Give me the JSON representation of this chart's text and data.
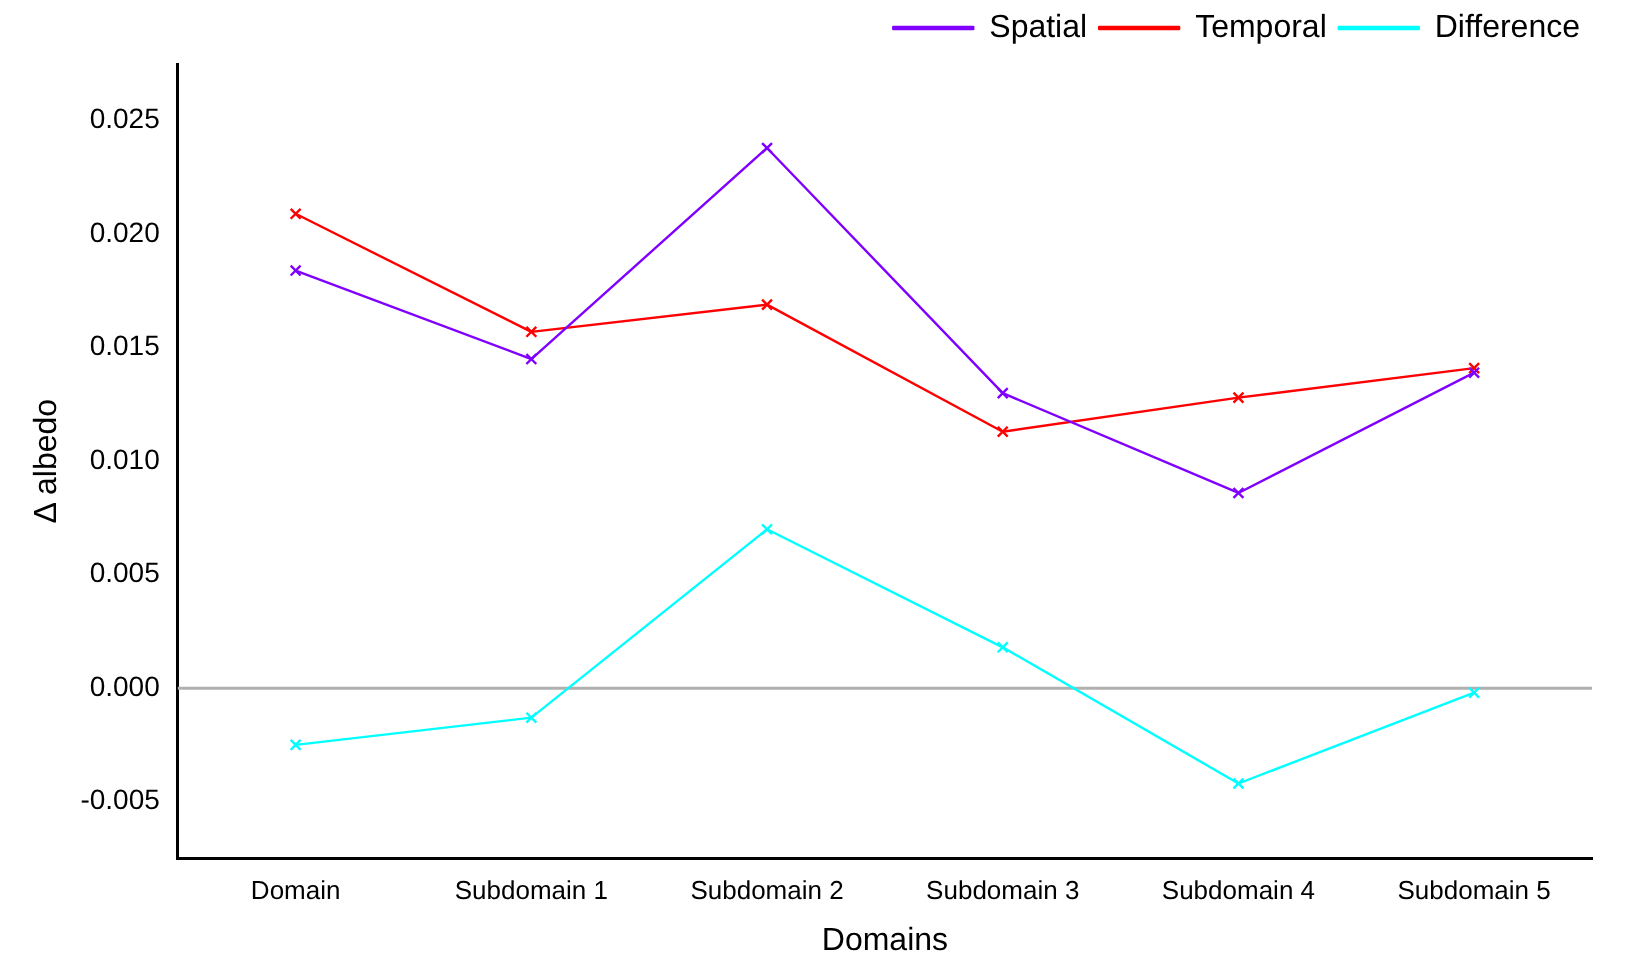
{
  "chart_data": {
    "type": "line",
    "xlabel": "Domains",
    "ylabel": "Δ albedo",
    "categories": [
      "Domain",
      "Subdomain 1",
      "Subdomain 2",
      "Subdomain 3",
      "Subdomain 4",
      "Subdomain 5"
    ],
    "series": [
      {
        "name": "Spatial",
        "color": "#8000ff",
        "values": [
          0.0184,
          0.0145,
          0.0238,
          0.013,
          0.0086,
          0.0139
        ]
      },
      {
        "name": "Temporal",
        "color": "#ff0000",
        "values": [
          0.0209,
          0.0157,
          0.0169,
          0.0113,
          0.0128,
          0.0141
        ]
      },
      {
        "name": "Difference",
        "color": "#00ffff",
        "values": [
          -0.0025,
          -0.0013,
          0.007,
          0.0018,
          -0.0042,
          -0.0002
        ]
      }
    ],
    "ylim": [
      -0.0075,
      0.0275
    ],
    "yticks": [
      {
        "value": -0.005,
        "label": "-0.005"
      },
      {
        "value": 0,
        "label": "0.000"
      },
      {
        "value": 0.005,
        "label": "0.005"
      },
      {
        "value": 0.01,
        "label": "0.010"
      },
      {
        "value": 0.015,
        "label": "0.015"
      },
      {
        "value": 0.02,
        "label": "0.020"
      },
      {
        "value": 0.025,
        "label": "0.025"
      }
    ],
    "ref_lines": [
      {
        "axis": "y",
        "value": 0,
        "color": "#b0b0b0"
      }
    ],
    "marker": "cross",
    "line_style": "solid",
    "legend": "top right",
    "grid": false
  }
}
